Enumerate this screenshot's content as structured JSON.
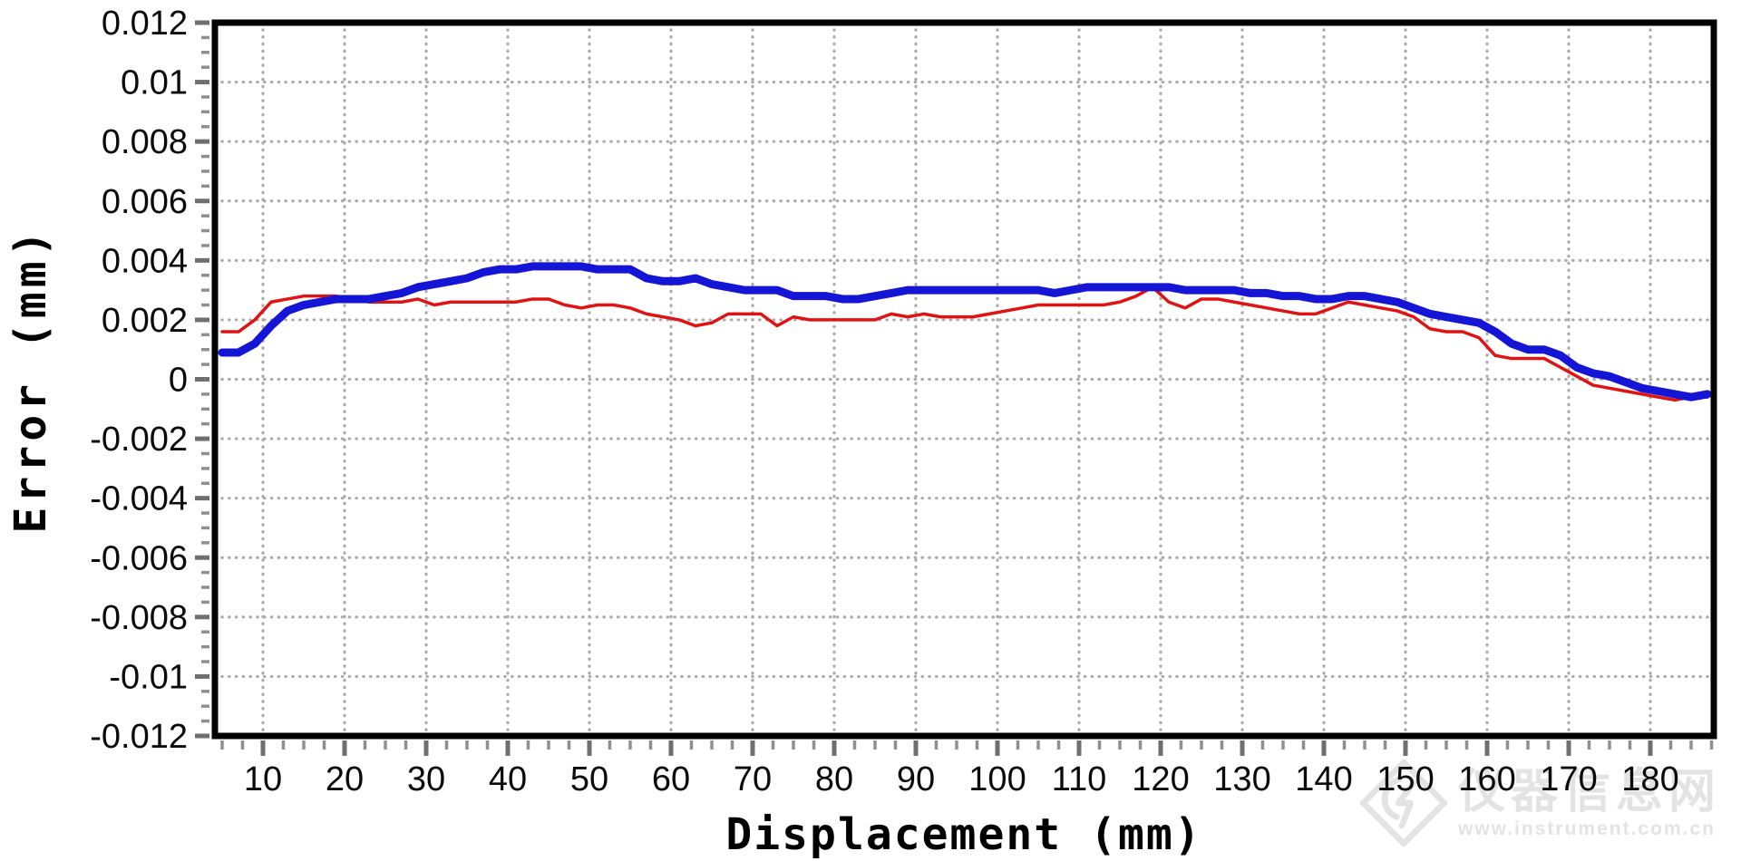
{
  "watermark": {
    "site_name": "仪器信息网",
    "url": "www.instrument.com.cn"
  },
  "chart_data": {
    "type": "line",
    "title": "",
    "xlabel": "Displacement (mm)",
    "ylabel": "Error (mm)",
    "xlim": [
      4,
      188
    ],
    "ylim": [
      -0.012,
      0.012
    ],
    "grid": "dotted gray at every x major (10 mm) and y major (0.002 mm)",
    "legend": "none",
    "x_tick_labels": [
      "10",
      "20",
      "30",
      "40",
      "50",
      "60",
      "70",
      "80",
      "90",
      "100",
      "110",
      "120",
      "130",
      "140",
      "150",
      "160",
      "170",
      "180"
    ],
    "x_tick_values": [
      10,
      20,
      30,
      40,
      50,
      60,
      70,
      80,
      90,
      100,
      110,
      120,
      130,
      140,
      150,
      160,
      170,
      180
    ],
    "x_minor_step": 2.5,
    "y_tick_labels": [
      "0.012",
      "0.01",
      "0.008",
      "0.006",
      "0.004",
      "0.002",
      "0",
      "-0.002",
      "-0.004",
      "-0.006",
      "-0.008",
      "-0.01",
      "-0.012"
    ],
    "y_tick_values": [
      0.012,
      0.01,
      0.008,
      0.006,
      0.004,
      0.002,
      0,
      -0.002,
      -0.004,
      -0.006,
      -0.008,
      -0.01,
      -0.012
    ],
    "y_minor_step": 0.0005,
    "frame_color": "#000000",
    "grid_color": "#ababab",
    "major_tick_color": "#6f6f6f",
    "minor_tick_color": "#8f8f8f",
    "x": [
      5,
      7,
      9,
      11,
      13,
      15,
      17,
      19,
      21,
      23,
      25,
      27,
      29,
      31,
      33,
      35,
      37,
      39,
      41,
      43,
      45,
      47,
      49,
      51,
      53,
      55,
      57,
      59,
      61,
      63,
      65,
      67,
      69,
      71,
      73,
      75,
      77,
      79,
      81,
      83,
      85,
      87,
      89,
      91,
      93,
      95,
      97,
      99,
      101,
      103,
      105,
      107,
      109,
      111,
      113,
      115,
      117,
      119,
      121,
      123,
      125,
      127,
      129,
      131,
      133,
      135,
      137,
      139,
      141,
      143,
      145,
      147,
      149,
      151,
      153,
      155,
      157,
      159,
      161,
      163,
      165,
      167,
      169,
      171,
      173,
      175,
      177,
      179,
      181,
      183,
      185,
      187
    ],
    "series": [
      {
        "name": "series-blue-thick",
        "color": "#1515d6",
        "stroke_width": 9,
        "values": [
          0.0009,
          0.0009,
          0.0012,
          0.0018,
          0.0023,
          0.0025,
          0.0026,
          0.0027,
          0.0027,
          0.0027,
          0.0028,
          0.0029,
          0.0031,
          0.0032,
          0.0033,
          0.0034,
          0.0036,
          0.0037,
          0.0037,
          0.0038,
          0.0038,
          0.0038,
          0.0038,
          0.0037,
          0.0037,
          0.0037,
          0.0034,
          0.0033,
          0.0033,
          0.0034,
          0.0032,
          0.0031,
          0.003,
          0.003,
          0.003,
          0.0028,
          0.0028,
          0.0028,
          0.0027,
          0.0027,
          0.0028,
          0.0029,
          0.003,
          0.003,
          0.003,
          0.003,
          0.003,
          0.003,
          0.003,
          0.003,
          0.003,
          0.0029,
          0.003,
          0.0031,
          0.0031,
          0.0031,
          0.0031,
          0.0031,
          0.0031,
          0.003,
          0.003,
          0.003,
          0.003,
          0.0029,
          0.0029,
          0.0028,
          0.0028,
          0.0027,
          0.0027,
          0.0028,
          0.0028,
          0.0027,
          0.0026,
          0.0024,
          0.0022,
          0.0021,
          0.002,
          0.0019,
          0.0016,
          0.0012,
          0.001,
          0.001,
          0.0008,
          0.0004,
          0.0002,
          0.0001,
          -0.0001,
          -0.0003,
          -0.0004,
          -0.0005,
          -0.0006,
          -0.0005
        ]
      },
      {
        "name": "series-red-thin",
        "color": "#e11212",
        "stroke_width": 3.5,
        "values": [
          0.0016,
          0.0016,
          0.002,
          0.0026,
          0.0027,
          0.0028,
          0.0028,
          0.0028,
          0.0027,
          0.0026,
          0.0026,
          0.0026,
          0.0027,
          0.0025,
          0.0026,
          0.0026,
          0.0026,
          0.0026,
          0.0026,
          0.0027,
          0.0027,
          0.0025,
          0.0024,
          0.0025,
          0.0025,
          0.0024,
          0.0022,
          0.0021,
          0.002,
          0.0018,
          0.0019,
          0.0022,
          0.0022,
          0.0022,
          0.0018,
          0.0021,
          0.002,
          0.002,
          0.002,
          0.002,
          0.002,
          0.0022,
          0.0021,
          0.0022,
          0.0021,
          0.0021,
          0.0021,
          0.0022,
          0.0023,
          0.0024,
          0.0025,
          0.0025,
          0.0025,
          0.0025,
          0.0025,
          0.0026,
          0.0028,
          0.0031,
          0.0026,
          0.0024,
          0.0027,
          0.0027,
          0.0026,
          0.0025,
          0.0024,
          0.0023,
          0.0022,
          0.0022,
          0.0024,
          0.0026,
          0.0025,
          0.0024,
          0.0023,
          0.0021,
          0.0017,
          0.0016,
          0.0016,
          0.0014,
          0.0008,
          0.0007,
          0.0007,
          0.0007,
          0.0004,
          0.0001,
          -0.0002,
          -0.0003,
          -0.0004,
          -0.0005,
          -0.0006,
          -0.0007,
          -0.0006,
          -0.0006
        ]
      }
    ]
  }
}
